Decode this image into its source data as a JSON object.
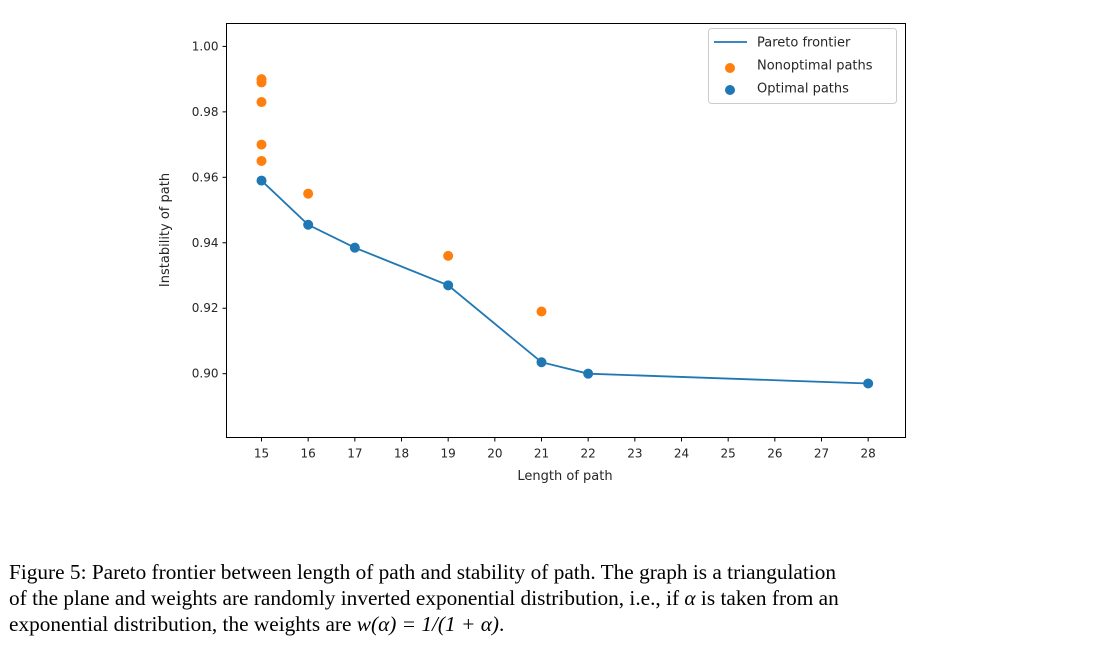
{
  "chart_data": {
    "type": "line",
    "title": "",
    "xlabel": "Length of path",
    "ylabel": "Instability of path",
    "xlim": [
      14.25,
      28.8
    ],
    "ylim": [
      0.8805,
      1.007
    ],
    "xticks": [
      15,
      16,
      17,
      18,
      19,
      20,
      21,
      22,
      23,
      24,
      25,
      26,
      27,
      28
    ],
    "yticks": [
      0.9,
      0.92,
      0.94,
      0.96,
      0.98,
      1.0
    ],
    "ytick_labels": [
      "0.90",
      "0.92",
      "0.94",
      "0.96",
      "0.98",
      "1.00"
    ],
    "grid": false,
    "legend_position": "top-right",
    "series": [
      {
        "name": "Pareto frontier",
        "kind": "line",
        "color": "#1f77b4",
        "x": [
          15,
          16,
          17,
          19,
          21,
          22,
          28
        ],
        "y": [
          0.959,
          0.9455,
          0.9385,
          0.927,
          0.9035,
          0.9,
          0.897
        ]
      },
      {
        "name": "Nonoptimal paths",
        "kind": "scatter",
        "color": "#ff7f0e",
        "x": [
          15,
          15,
          15,
          15,
          15,
          16,
          19,
          21
        ],
        "y": [
          0.99,
          0.989,
          0.983,
          0.97,
          0.965,
          0.955,
          0.936,
          0.919
        ]
      },
      {
        "name": "Optimal paths",
        "kind": "scatter",
        "color": "#1f77b4",
        "x": [
          15,
          16,
          17,
          19,
          21,
          22,
          28
        ],
        "y": [
          0.959,
          0.9455,
          0.9385,
          0.927,
          0.9035,
          0.9,
          0.897
        ]
      }
    ]
  },
  "caption": {
    "line1": "Figure 5: Pareto frontier between length of path and stability of path. The graph is a triangulation",
    "line2_pre": "of the plane and weights are randomly inverted exponential distribution, i.e., if ",
    "alpha": "α",
    "line2_post": " is taken from an",
    "line3_pre": "exponential distribution, the weights are ",
    "formula": "w(α) = 1/(1 + α)",
    "line3_post": "."
  }
}
